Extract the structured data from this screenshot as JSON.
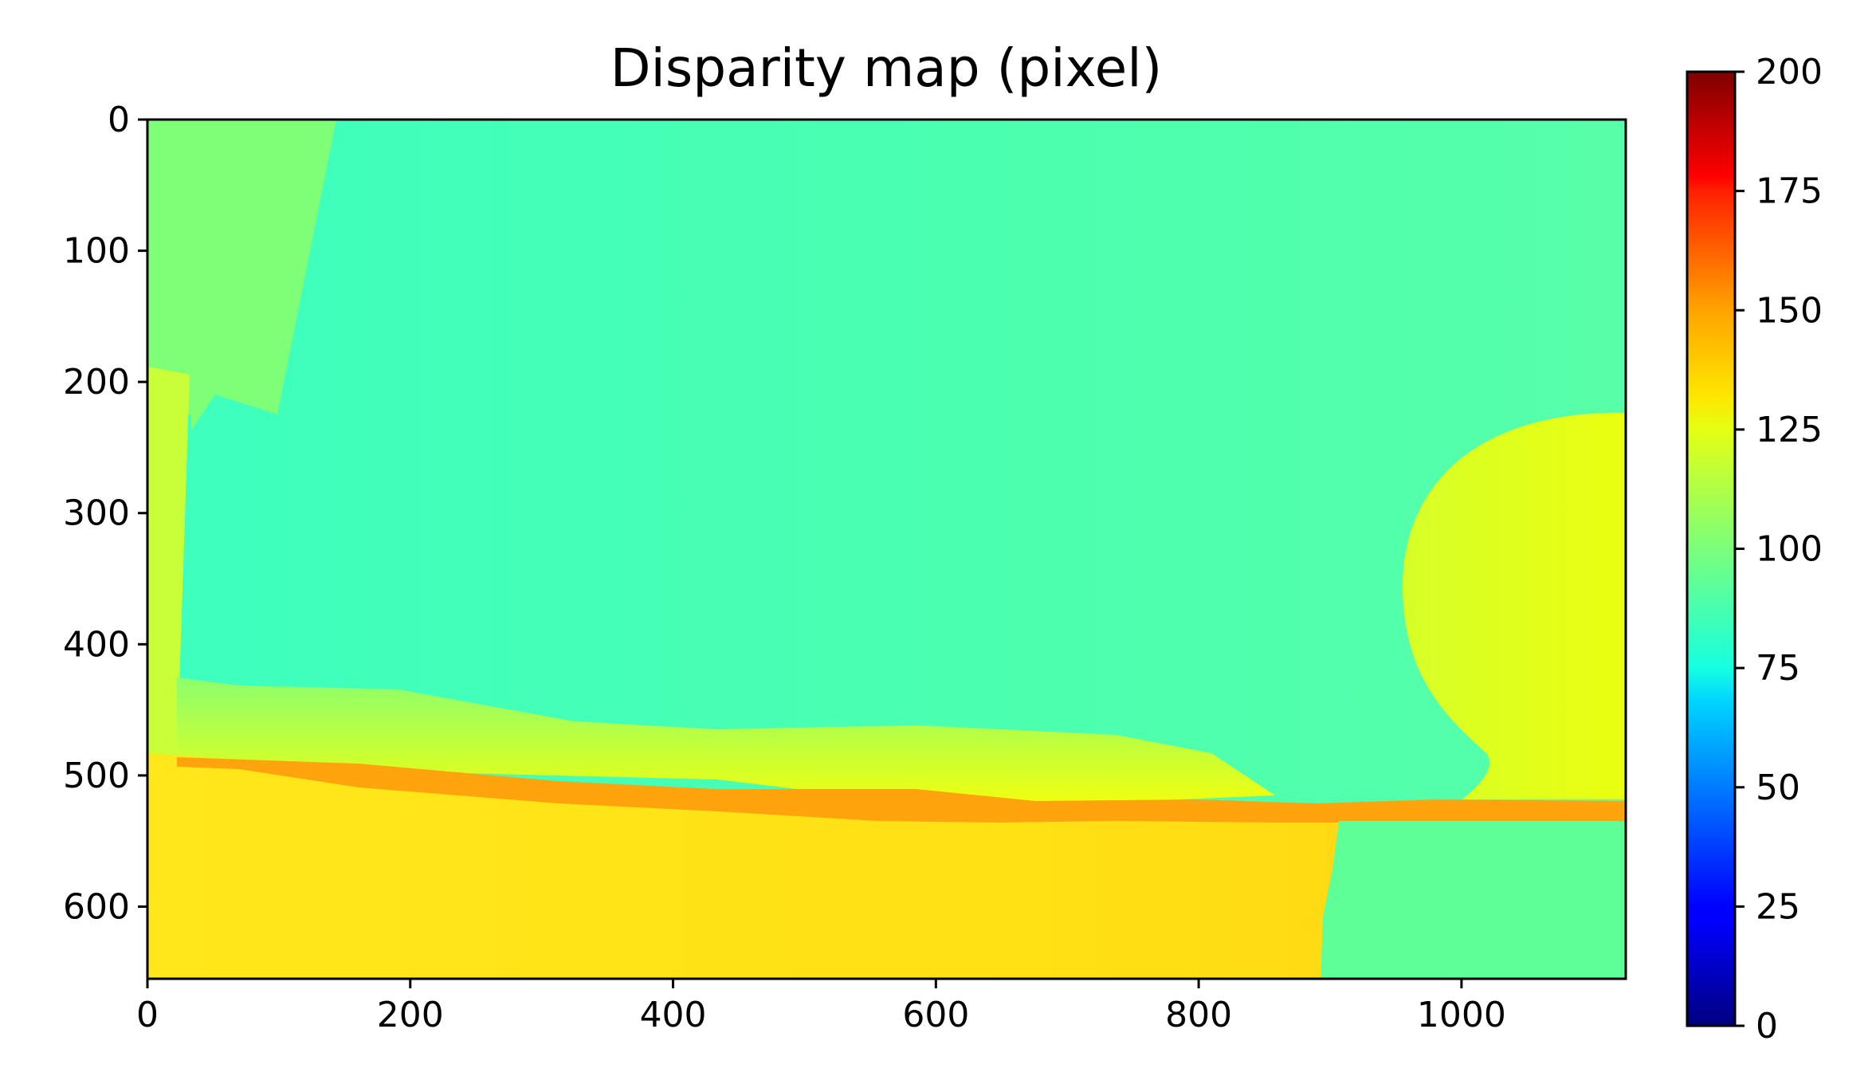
{
  "chart_data": {
    "type": "heatmap",
    "title": "Disparity map (pixel)",
    "xlabel": "",
    "ylabel": "",
    "xlim": [
      0,
      1125
    ],
    "ylim": [
      655,
      0
    ],
    "x_ticks": [
      0,
      200,
      400,
      600,
      800,
      1000
    ],
    "y_ticks": [
      0,
      100,
      200,
      300,
      400,
      500,
      600
    ],
    "colormap": "jet",
    "colorbar": {
      "range": [
        0,
        200
      ],
      "ticks": [
        0,
        25,
        50,
        75,
        100,
        125,
        150,
        175,
        200
      ]
    },
    "regions": [
      {
        "name": "sky-left-wedge",
        "approx_value": 105
      },
      {
        "name": "sky",
        "approx_value": 90
      },
      {
        "name": "sphere-right",
        "approx_value": 125
      },
      {
        "name": "far-ground-right",
        "approx_value": 100
      },
      {
        "name": "transition-band",
        "approx_value": 120
      },
      {
        "name": "horizon-edge",
        "approx_value": 150
      },
      {
        "name": "foreground-floor",
        "approx_value": 137
      }
    ]
  }
}
